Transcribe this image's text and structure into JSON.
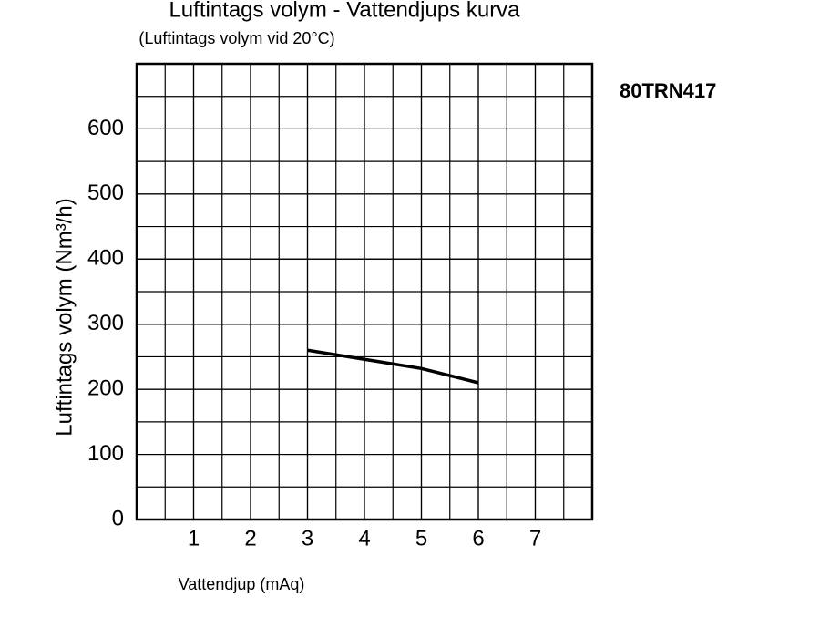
{
  "chart_data": {
    "type": "line",
    "title": "Luftintags volym - Vattendjups kurva",
    "subtitle": "(Luftintags volym vid 20°C)",
    "annotation": "80TRN417",
    "xlabel": "Vattendjup (mAq)",
    "ylabel": "Luftintags volym (Nm³/h)",
    "x": [
      3,
      4,
      5,
      6
    ],
    "series": [
      {
        "color": "#000000",
        "values": [
          260,
          246,
          232,
          210
        ]
      }
    ],
    "xlim": [
      0,
      8
    ],
    "xticks": [
      1,
      2,
      3,
      4,
      5,
      6,
      7
    ],
    "ylim": [
      0,
      700
    ],
    "yticks": [
      0,
      100,
      200,
      300,
      400,
      500,
      600
    ],
    "grid": true
  }
}
